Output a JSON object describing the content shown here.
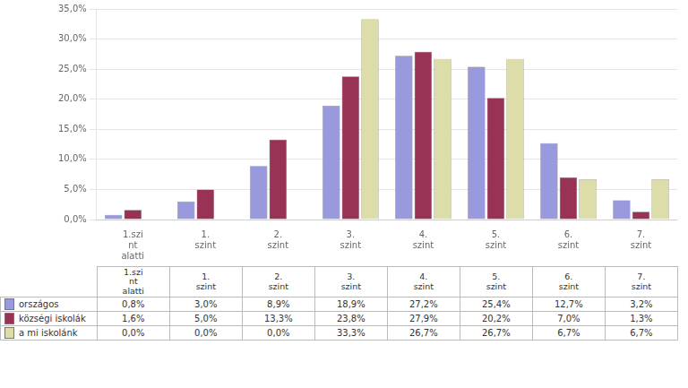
{
  "chart_data": {
    "type": "bar",
    "categories": [
      "1.szi\nnt\nalatti",
      "1.\nszint",
      "2.\nszint",
      "3.\nszint",
      "4.\nszint",
      "5.\nszint",
      "6.\nszint",
      "7.\nszint"
    ],
    "series": [
      {
        "name": "országos",
        "color": "#9999DD",
        "values": [
          0.8,
          3.0,
          8.9,
          18.9,
          27.2,
          25.4,
          12.7,
          3.2
        ],
        "value_labels": [
          "0,8%",
          "3,0%",
          "8,9%",
          "18,9%",
          "27,2%",
          "25,4%",
          "12,7%",
          "3,2%"
        ]
      },
      {
        "name": "községi iskolák",
        "color": "#993355",
        "values": [
          1.6,
          5.0,
          13.3,
          23.8,
          27.9,
          20.2,
          7.0,
          1.3
        ],
        "value_labels": [
          "1,6%",
          "5,0%",
          "13,3%",
          "23,8%",
          "27,9%",
          "20,2%",
          "7,0%",
          "1,3%"
        ]
      },
      {
        "name": "a mi iskolánk",
        "color": "#DDDDAA",
        "values": [
          0.0,
          0.0,
          0.0,
          33.3,
          26.7,
          26.7,
          6.7,
          6.7
        ],
        "value_labels": [
          "0,0%",
          "0,0%",
          "0,0%",
          "33,3%",
          "26,7%",
          "26,7%",
          "6,7%",
          "6,7%"
        ]
      }
    ],
    "ylim": [
      0,
      35
    ],
    "yticks": [
      {
        "value": 0,
        "label": "0,0%"
      },
      {
        "value": 5,
        "label": "5,0%"
      },
      {
        "value": 10,
        "label": "10,0%"
      },
      {
        "value": 15,
        "label": "15,0%"
      },
      {
        "value": 20,
        "label": "20,0%"
      },
      {
        "value": 25,
        "label": "25,0%"
      },
      {
        "value": 30,
        "label": "30,0%"
      },
      {
        "value": 35,
        "label": "35,0%"
      }
    ],
    "grid": true
  }
}
